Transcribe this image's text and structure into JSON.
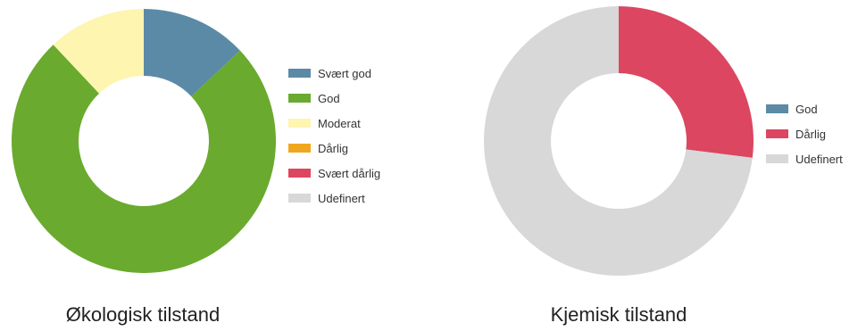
{
  "chart_data": [
    {
      "type": "pie",
      "title": "Økologisk tilstand",
      "legend_position": "right",
      "categories": [
        "Svært god",
        "God",
        "Moderat",
        "Dårlig",
        "Svært dårlig",
        "Udefinert"
      ],
      "values": [
        13,
        75,
        12,
        0,
        0,
        0
      ],
      "colors": [
        "#5b8aa6",
        "#6aaa2e",
        "#fdf5b0",
        "#f0a71f",
        "#dc4660",
        "#d8d8d8"
      ]
    },
    {
      "type": "pie",
      "title": "Kjemisk tilstand",
      "legend_position": "right",
      "categories": [
        "God",
        "Dårlig",
        "Udefinert"
      ],
      "values": [
        0,
        27,
        73
      ],
      "colors": [
        "#5b8aa6",
        "#dc4660",
        "#d8d8d8"
      ]
    }
  ]
}
